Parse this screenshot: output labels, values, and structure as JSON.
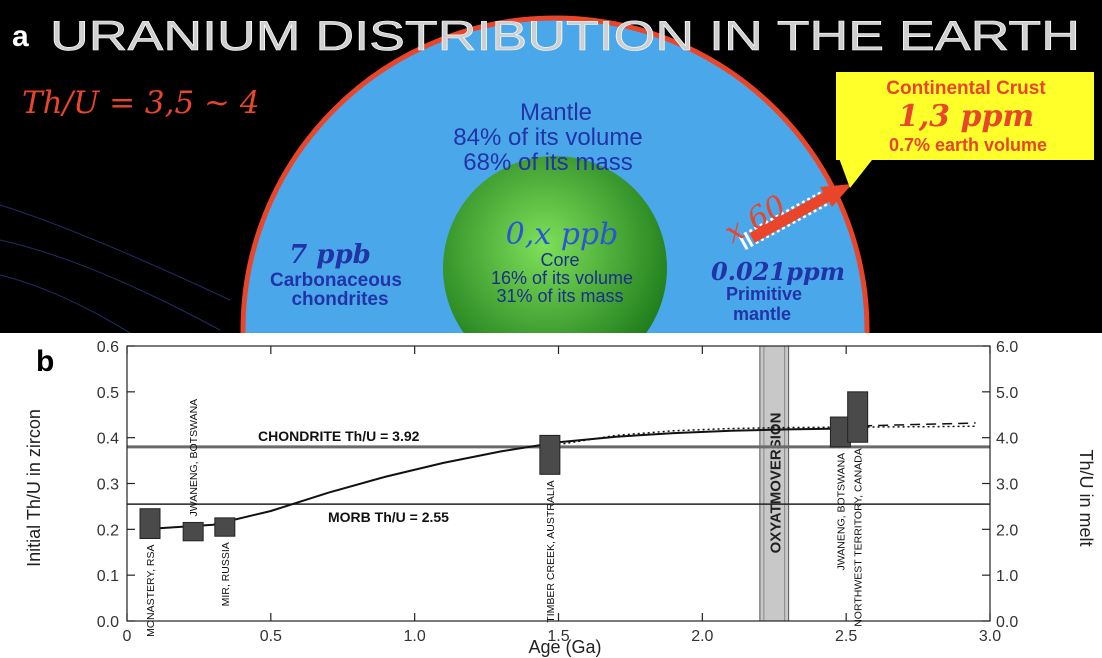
{
  "panel_a": {
    "letter": "a",
    "title": "URANIUM DISTRIBUTION IN THE EARTH",
    "ratio": "Th/U = 3,5 ~ 4",
    "mantle": {
      "title": "Mantle",
      "volume": "84% of its volume",
      "mass": "68% of its mass"
    },
    "core": {
      "value": "0,x ppb",
      "title": "Core",
      "volume": "16% of its volume",
      "mass": "31% of its mass"
    },
    "chondrites": {
      "value": "7 ppb",
      "line1": "Carbonaceous",
      "line2": "chondrites"
    },
    "primitive": {
      "value": "0.021ppm",
      "line1": "Primitive",
      "line2": "mantle"
    },
    "multiplier": "x 60",
    "crust": {
      "title": "Continental Crust",
      "value": "1,3 ppm",
      "volume": "0.7% earth volume"
    },
    "colors": {
      "mantle": "#4aa8ea",
      "rim": "#e8452a",
      "core": "#35a02e",
      "callout": "#ffff2a",
      "red_text": "#e8452a",
      "blue_text": "#2233a8"
    }
  },
  "chart_data": {
    "type": "line",
    "letter": "b",
    "xlabel": "Age (Ga)",
    "ylabel": "Initial Th/U in zircon",
    "ylabel_right": "Th/U in melt",
    "xlim": [
      0,
      3.0
    ],
    "ylim": [
      0,
      0.6
    ],
    "ylim_right": [
      0,
      6.0
    ],
    "x_ticks": [
      "0",
      "0.5",
      "1.0",
      "1.5",
      "2.0",
      "2.5",
      "3.0"
    ],
    "y_ticks": [
      "0.0",
      "0.1",
      "0.2",
      "0.3",
      "0.4",
      "0.5",
      "0.6"
    ],
    "y_ticks_right": [
      "0.0",
      "1.0",
      "2.0",
      "3.0",
      "4.0",
      "5.0",
      "6.0"
    ],
    "reference_lines": [
      {
        "label": "CHONDRITE Th/U = 3.92",
        "y": 0.38
      },
      {
        "label": "MORB Th/U = 2.55",
        "y": 0.255
      }
    ],
    "band": {
      "label": "OXYATMOVERSION",
      "x": [
        2.2,
        2.3
      ]
    },
    "series": [
      {
        "style": "solid",
        "x": [
          0.05,
          0.3,
          0.5,
          0.7,
          0.9,
          1.1,
          1.3,
          1.5,
          1.7,
          1.9,
          2.1,
          2.3,
          2.5
        ],
        "y": [
          0.2,
          0.21,
          0.24,
          0.28,
          0.315,
          0.345,
          0.37,
          0.39,
          0.402,
          0.41,
          0.415,
          0.418,
          0.42
        ]
      },
      {
        "style": "dotted",
        "x": [
          1.5,
          1.7,
          1.9,
          2.1,
          2.3,
          2.5,
          2.8,
          2.95
        ],
        "y": [
          0.385,
          0.405,
          0.415,
          0.42,
          0.422,
          0.423,
          0.424,
          0.425
        ]
      },
      {
        "style": "dashed",
        "x": [
          2.5,
          2.7,
          2.95
        ],
        "y": [
          0.425,
          0.428,
          0.432
        ]
      }
    ],
    "boxes": [
      {
        "label": "MONASTERY, RSA",
        "x": 0.08,
        "y": [
          0.18,
          0.245
        ]
      },
      {
        "label": "JWANENG, BOTSWANA",
        "x": 0.23,
        "y": [
          0.175,
          0.215
        ]
      },
      {
        "label": "MIR, RUSSIA",
        "x": 0.34,
        "y": [
          0.185,
          0.225
        ]
      },
      {
        "label": "TIMBER CREEK, AUSTRALIA",
        "x": 1.47,
        "y": [
          0.32,
          0.405
        ]
      },
      {
        "label": "JWANENG, BOTSWANA",
        "x": 2.48,
        "y": [
          0.38,
          0.445
        ]
      },
      {
        "label": "NORTHWEST TERRITORY, CANADA",
        "x": 2.54,
        "y": [
          0.39,
          0.5
        ]
      }
    ]
  }
}
